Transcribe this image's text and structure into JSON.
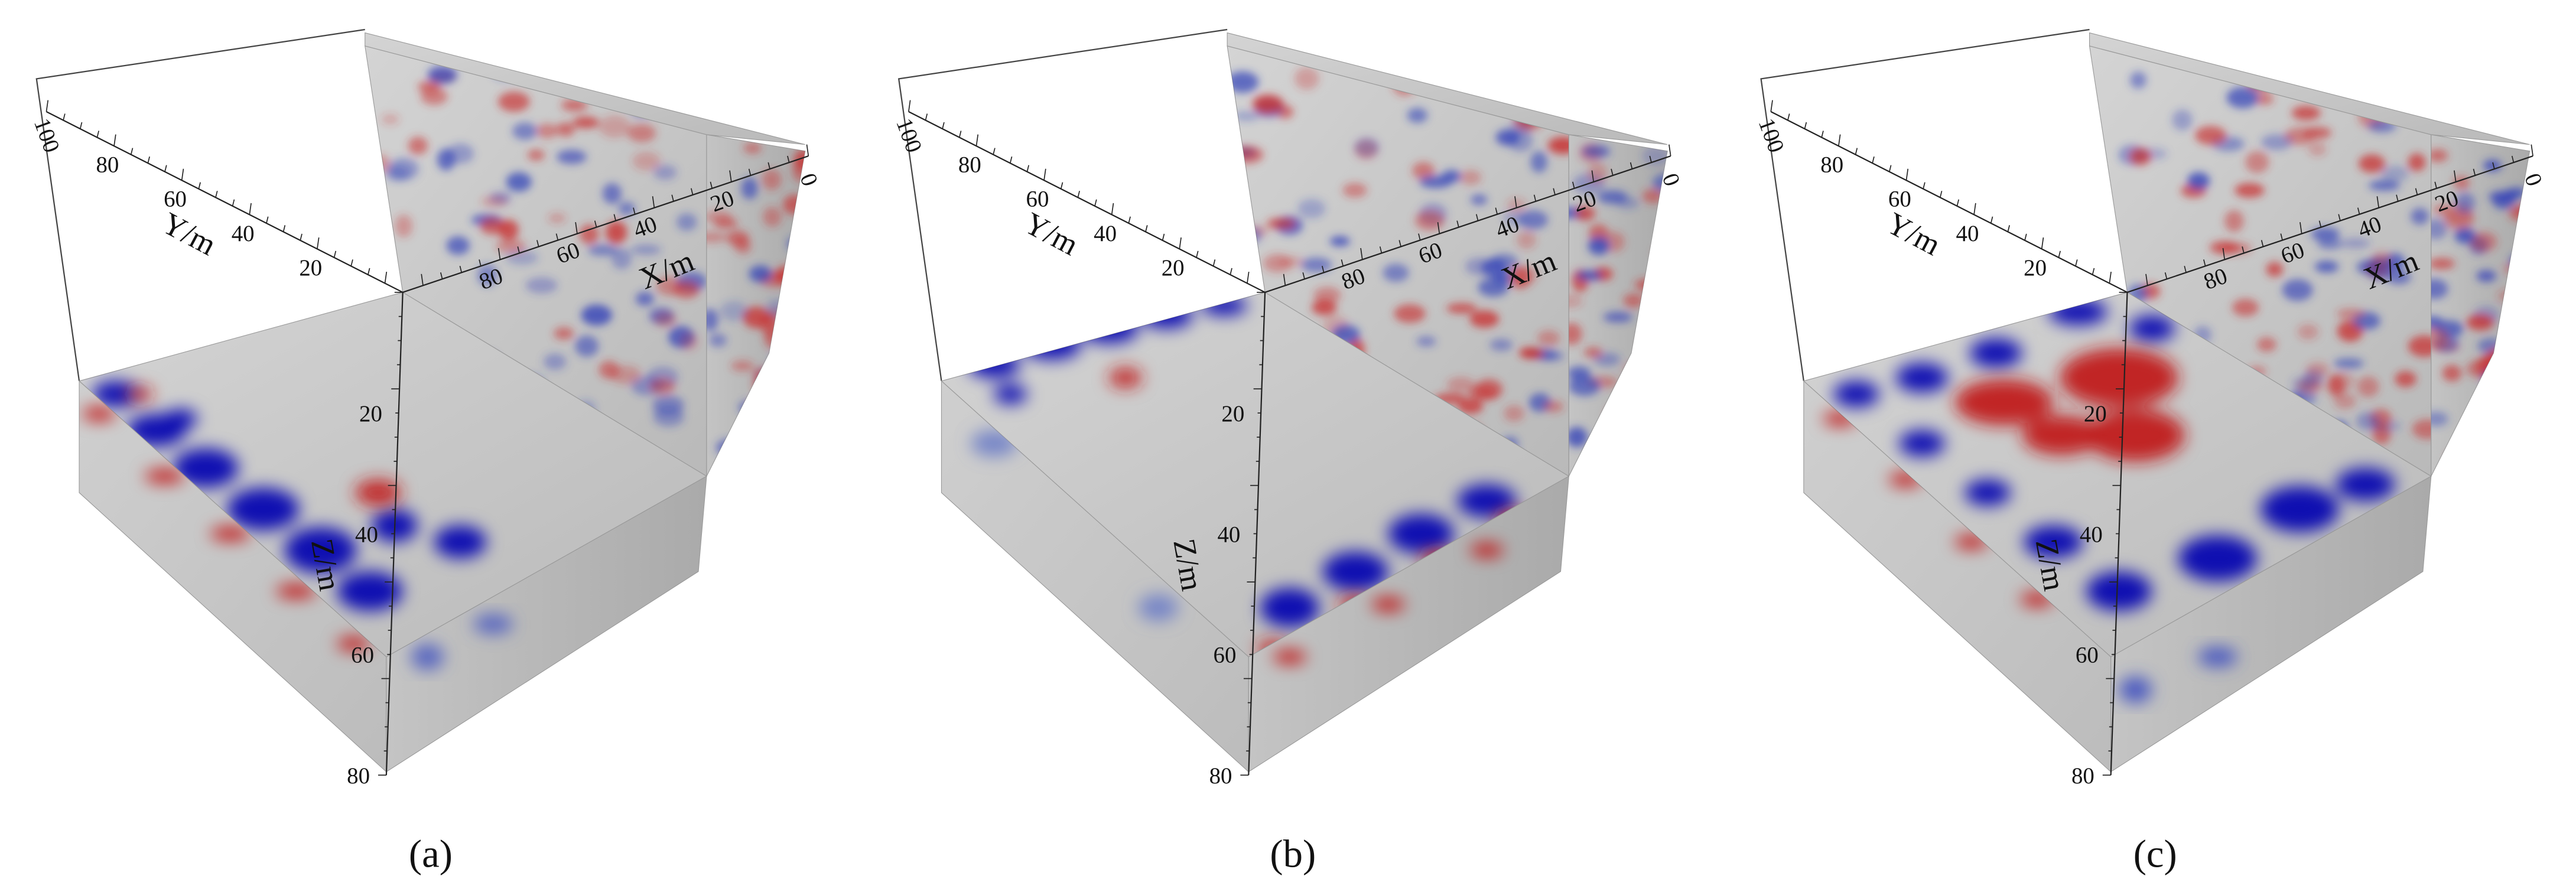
{
  "panels": [
    {
      "caption": "(a)",
      "y_title": "Y/m",
      "x_title": "X/m",
      "z_title": "Z/m",
      "y_ticks": [
        "100",
        "80",
        "60",
        "40",
        "20"
      ],
      "x_ticks": [
        "0",
        "20",
        "40",
        "60",
        "80"
      ],
      "z_ticks": [
        "20",
        "40",
        "60",
        "80"
      ]
    },
    {
      "caption": "(b)",
      "y_title": "Y/m",
      "x_title": "X/m",
      "z_title": "Z/m",
      "y_ticks": [
        "100",
        "80",
        "60",
        "40",
        "20"
      ],
      "x_ticks": [
        "0",
        "20",
        "40",
        "60",
        "80"
      ],
      "z_ticks": [
        "20",
        "40",
        "60",
        "80"
      ]
    },
    {
      "caption": "(c)",
      "y_title": "Y/m",
      "x_title": "X/m",
      "z_title": "Z/m",
      "y_ticks": [
        "100",
        "80",
        "60",
        "40",
        "20"
      ],
      "x_ticks": [
        "0",
        "20",
        "40",
        "60",
        "80"
      ],
      "z_ticks": [
        "20",
        "40",
        "60",
        "80"
      ]
    }
  ]
}
